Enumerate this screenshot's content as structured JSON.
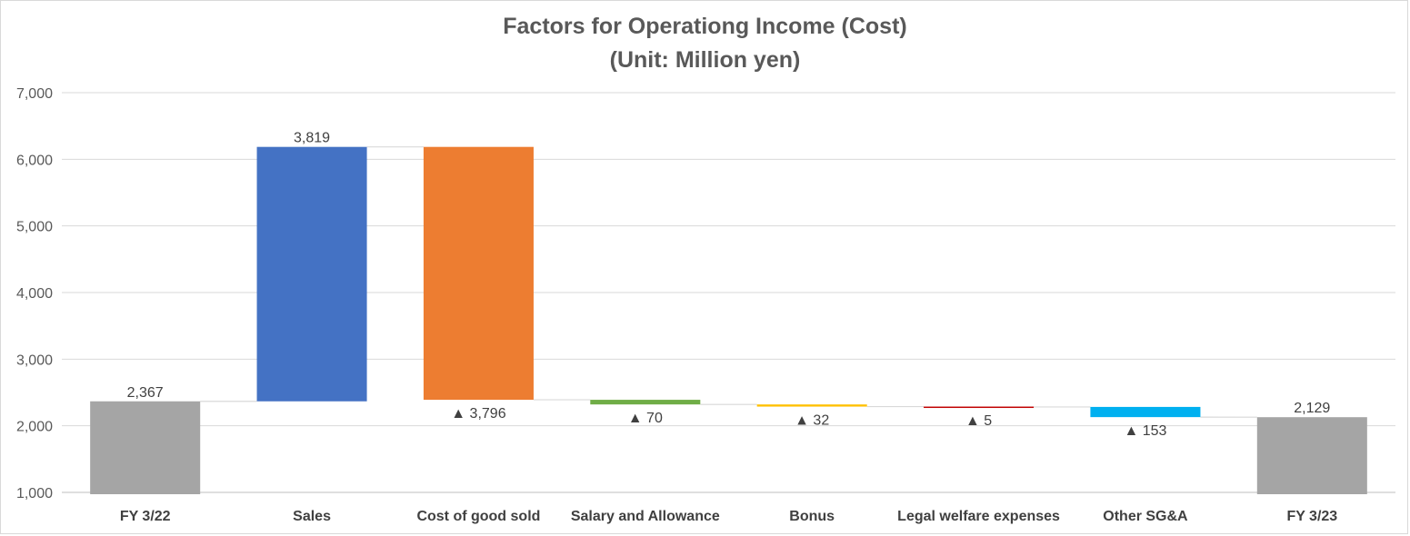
{
  "chart_data": {
    "type": "waterfall",
    "title": "Factors for Operationg Income (Cost)",
    "subtitle": "(Unit: Million yen)",
    "ylim": [
      1000,
      7000
    ],
    "yticks": [
      1000,
      2000,
      3000,
      4000,
      5000,
      6000,
      7000
    ],
    "ytick_labels": [
      "1,000",
      "2,000",
      "3,000",
      "4,000",
      "5,000",
      "6,000",
      "7,000"
    ],
    "grid": true,
    "legend": "none",
    "categories": [
      "FY 3/22",
      "Sales",
      "Cost of good sold",
      "Salary and Allowance",
      "Bonus",
      "Legal welfare expenses",
      "Other SG&A",
      "FY 3/23"
    ],
    "bars": [
      {
        "category": "FY 3/22",
        "kind": "total",
        "value": 2367,
        "label": "2,367",
        "color": "#a5a5a5"
      },
      {
        "category": "Sales",
        "kind": "increase",
        "value": 3819,
        "label": "3,819",
        "color": "#4472c4"
      },
      {
        "category": "Cost of good sold",
        "kind": "decrease",
        "value": 3796,
        "label": "▲ 3,796",
        "color": "#ed7d31"
      },
      {
        "category": "Salary and Allowance",
        "kind": "decrease",
        "value": 70,
        "label": "▲ 70",
        "color": "#70ad47"
      },
      {
        "category": "Bonus",
        "kind": "decrease",
        "value": 32,
        "label": "▲ 32",
        "color": "#ffc000"
      },
      {
        "category": "Legal welfare expenses",
        "kind": "decrease",
        "value": 5,
        "label": "▲ 5",
        "color": "#c00000"
      },
      {
        "category": "Other SG&A",
        "kind": "decrease",
        "value": 153,
        "label": "▲ 153",
        "color": "#00b0f0"
      },
      {
        "category": "FY 3/23",
        "kind": "total",
        "value": 2129,
        "label": "2,129",
        "color": "#a5a5a5"
      }
    ]
  }
}
